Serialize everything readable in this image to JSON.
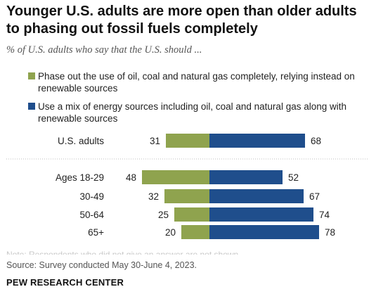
{
  "header": {
    "title": "Younger U.S. adults are more open than older adults to phasing out fossil fuels completely",
    "subtitle": "% of U.S. adults who say that the U.S. should ..."
  },
  "legend": [
    {
      "label": "Phase out the use of oil, coal and natural gas completely, relying instead on renewable sources",
      "color": "#8fa34e"
    },
    {
      "label": "Use a mix of energy sources including oil, coal and natural gas along with renewable sources",
      "color": "#1f4e8c"
    }
  ],
  "chart_data": {
    "type": "bar",
    "orientation": "horizontal-diverging",
    "categories": [
      "U.S. adults",
      "Ages 18-29",
      "30-49",
      "50-64",
      "65+"
    ],
    "series": [
      {
        "name": "Phase out the use of oil, coal and natural gas completely, relying instead on renewable sources",
        "values": [
          31,
          48,
          32,
          25,
          20
        ],
        "color": "#8fa34e"
      },
      {
        "name": "Use a mix of energy sources including oil, coal and natural gas along with renewable sources",
        "values": [
          68,
          52,
          67,
          74,
          78
        ],
        "color": "#1f4e8c"
      }
    ],
    "grid": false
  },
  "footer": {
    "note": "Note: Respondents who did not give an answer are not shown.",
    "source": "Source: Survey conducted May 30-June 4, 2023.",
    "brand": "PEW RESEARCH CENTER"
  }
}
